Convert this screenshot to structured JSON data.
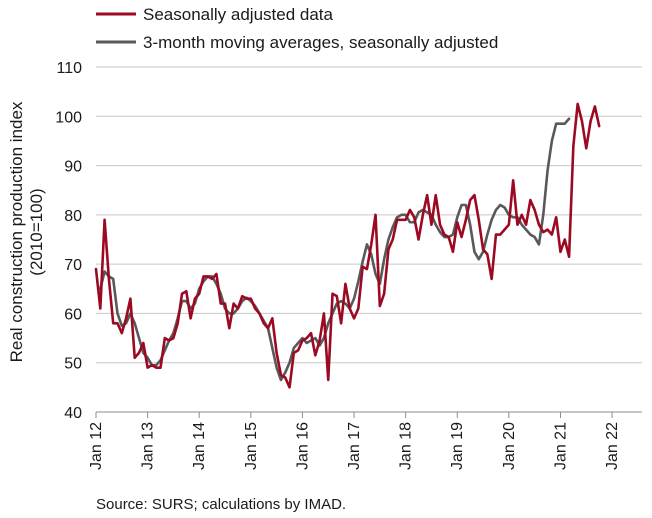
{
  "chart_data": {
    "type": "line",
    "ylabel_line1": "Real construction production index",
    "ylabel_line2": "(2010=100)",
    "source": "Source: SURS; calculations by IMAD.",
    "ylim": [
      40,
      110
    ],
    "yticks": [
      "40",
      "50",
      "60",
      "70",
      "80",
      "90",
      "100",
      "110"
    ],
    "xlim": [
      2012,
      2022.58
    ],
    "xticks": [
      {
        "label": "Jan 12",
        "x": 2012
      },
      {
        "label": "Jan 13",
        "x": 2013
      },
      {
        "label": "Jan 14",
        "x": 2014
      },
      {
        "label": "Jan 15",
        "x": 2015
      },
      {
        "label": "Jan 16",
        "x": 2016
      },
      {
        "label": "Jan 17",
        "x": 2017
      },
      {
        "label": "Jan 18",
        "x": 2018
      },
      {
        "label": "Jan 19",
        "x": 2019
      },
      {
        "label": "Jan 20",
        "x": 2020
      },
      {
        "label": "Jan 21",
        "x": 2021
      },
      {
        "label": "Jan 22",
        "x": 2022
      }
    ],
    "grid": "horizontal",
    "legend_position": "top-left",
    "colors": {
      "sa": "#9b0a22",
      "ma": "#595959"
    },
    "series": [
      {
        "name": "Seasonally adjusted data",
        "key": "sa",
        "start": "2012-01",
        "values": [
          69,
          61,
          79,
          67,
          58,
          58,
          56,
          59,
          63,
          51,
          52,
          54,
          49,
          49.5,
          49,
          49,
          55,
          54.5,
          55,
          58,
          64,
          64.5,
          59,
          63,
          64,
          67.5,
          67.5,
          67,
          68,
          62,
          62,
          57,
          62,
          61,
          63.5,
          63,
          63,
          61,
          60,
          58,
          57,
          59,
          52,
          47.5,
          47,
          45,
          52,
          52.5,
          54.5,
          55,
          56,
          51.5,
          54.5,
          60,
          46.5,
          64,
          63.5,
          58,
          66,
          61,
          59,
          61,
          69.5,
          69,
          74,
          80,
          61.5,
          64,
          73,
          75,
          79,
          79,
          79,
          81,
          79.5,
          75,
          80,
          84,
          78,
          84,
          78,
          76,
          75.5,
          72.5,
          78.5,
          75.5,
          79,
          83,
          84,
          79,
          73,
          72,
          67,
          76,
          76,
          77,
          78,
          87,
          78,
          80,
          78,
          83,
          81,
          78,
          76.5,
          77,
          76,
          79.5,
          72.5,
          75,
          71.5,
          94,
          102.5,
          99,
          93.5,
          99,
          102,
          98
        ]
      },
      {
        "name": "3-month moving averages, seasonally adjusted",
        "key": "ma",
        "start": "2012-02",
        "values": [
          65,
          68.5,
          67.5,
          67,
          60,
          57.5,
          58,
          60,
          58,
          55,
          52,
          51,
          49.5,
          49.5,
          50.5,
          52.5,
          54.5,
          56,
          59,
          62.5,
          62.5,
          61,
          62,
          65,
          66.5,
          67.5,
          67.5,
          66,
          64,
          61,
          60,
          60,
          61,
          62.5,
          63.2,
          62.5,
          61.5,
          60,
          58.5,
          57,
          53,
          49,
          46.5,
          48,
          50,
          53,
          54,
          55,
          54,
          54.5,
          55,
          53.5,
          55,
          58,
          60,
          62,
          62.5,
          62,
          61,
          63,
          66.5,
          70.5,
          74,
          72,
          68,
          66,
          71,
          75,
          77.5,
          79.5,
          80,
          80,
          78.5,
          78.5,
          80.5,
          81,
          80.5,
          80,
          78,
          76.5,
          75.5,
          75.5,
          76,
          79.5,
          82,
          82,
          78,
          72.5,
          71,
          72.5,
          76,
          79,
          81,
          82,
          81.5,
          80,
          79.5,
          79.5,
          78,
          77,
          76,
          75.5,
          74,
          80,
          89,
          95,
          98.5,
          98.5,
          98.5,
          99.5
        ]
      }
    ]
  }
}
